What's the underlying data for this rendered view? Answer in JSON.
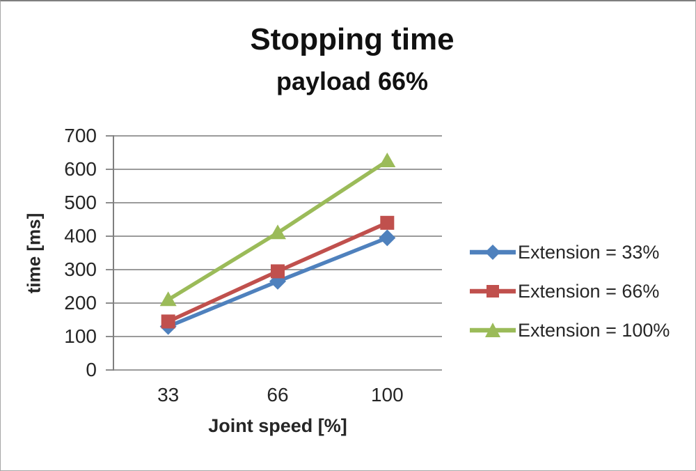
{
  "title": {
    "line1": "Stopping time",
    "line2": "payload 66%"
  },
  "chart_data": {
    "type": "line",
    "x": [
      33,
      66,
      100
    ],
    "x_labels": [
      "33",
      "66",
      "100"
    ],
    "xlabel": "Joint speed [%]",
    "ylabel": "time [ms]",
    "ylim": [
      0,
      700
    ],
    "ytick_step": 100,
    "grid": true,
    "legend_position": "right",
    "series": [
      {
        "name": "Extension = 33%",
        "marker": "diamond",
        "color": "#4F81BD",
        "values": [
          130,
          265,
          395
        ]
      },
      {
        "name": "Extension = 66%",
        "marker": "square",
        "color": "#C0504D",
        "values": [
          145,
          295,
          440
        ]
      },
      {
        "name": "Extension = 100%",
        "marker": "triangle",
        "color": "#9BBB59",
        "values": [
          210,
          410,
          625
        ]
      }
    ]
  },
  "style_colors": {
    "gridline": "#8d8d8d",
    "axis": "#7f7f7f",
    "text": "#262626",
    "title": "#111111"
  }
}
